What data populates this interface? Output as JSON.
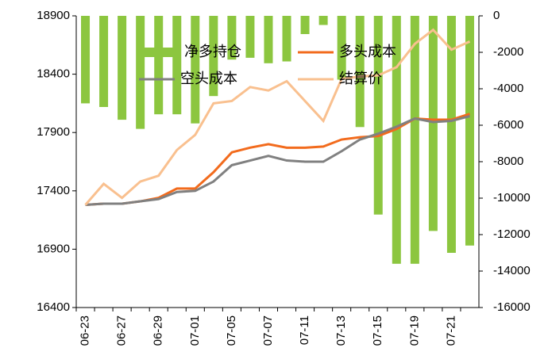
{
  "chart_data": {
    "type": "bar_line",
    "categories": [
      "06-23",
      null,
      "06-27",
      null,
      "06-29",
      null,
      "07-01",
      null,
      "07-05",
      null,
      "07-07",
      null,
      "07-11",
      null,
      "07-13",
      null,
      "07-15",
      null,
      "07-19",
      null,
      "07-21",
      null
    ],
    "series": [
      {
        "name": "净多持仓",
        "type": "bar",
        "axis": "y2",
        "color": "#8cc63f",
        "values": [
          -4800,
          -5000,
          -5700,
          -6200,
          -5400,
          -5400,
          -5900,
          -4400,
          -2400,
          -2300,
          -2600,
          -2500,
          -1000,
          -500,
          -3500,
          -6100,
          -10900,
          -13600,
          -13600,
          -11800,
          -13000,
          -12600
        ]
      },
      {
        "name": "多头成本",
        "type": "line",
        "color": "#f26b1d",
        "values": [
          17280,
          17290,
          17290,
          17310,
          17340,
          17420,
          17420,
          17560,
          17730,
          17770,
          17800,
          17770,
          17770,
          17780,
          17840,
          17860,
          17870,
          17930,
          18020,
          18010,
          18010,
          18060
        ]
      },
      {
        "name": "空头成本",
        "type": "line",
        "color": "#808080",
        "values": [
          17280,
          17290,
          17290,
          17310,
          17330,
          17390,
          17400,
          17480,
          17620,
          17660,
          17700,
          17660,
          17650,
          17650,
          17740,
          17840,
          17890,
          17950,
          18020,
          17990,
          18000,
          18040
        ]
      },
      {
        "name": "结算价",
        "type": "line",
        "color": "#f9c08f",
        "values": [
          17280,
          17460,
          17340,
          17480,
          17530,
          17750,
          17880,
          18150,
          18170,
          18290,
          18260,
          18340,
          18170,
          18000,
          18360,
          18380,
          18390,
          18460,
          18660,
          18780,
          18610,
          18680
        ]
      }
    ],
    "ylim": [
      16400,
      18900
    ],
    "yticks": [
      16400,
      16900,
      17400,
      17900,
      18400,
      18900
    ],
    "y2lim": [
      -16000,
      0
    ],
    "y2ticks": [
      -16000,
      -14000,
      -12000,
      -10000,
      -8000,
      -6000,
      -4000,
      -2000,
      0
    ]
  }
}
